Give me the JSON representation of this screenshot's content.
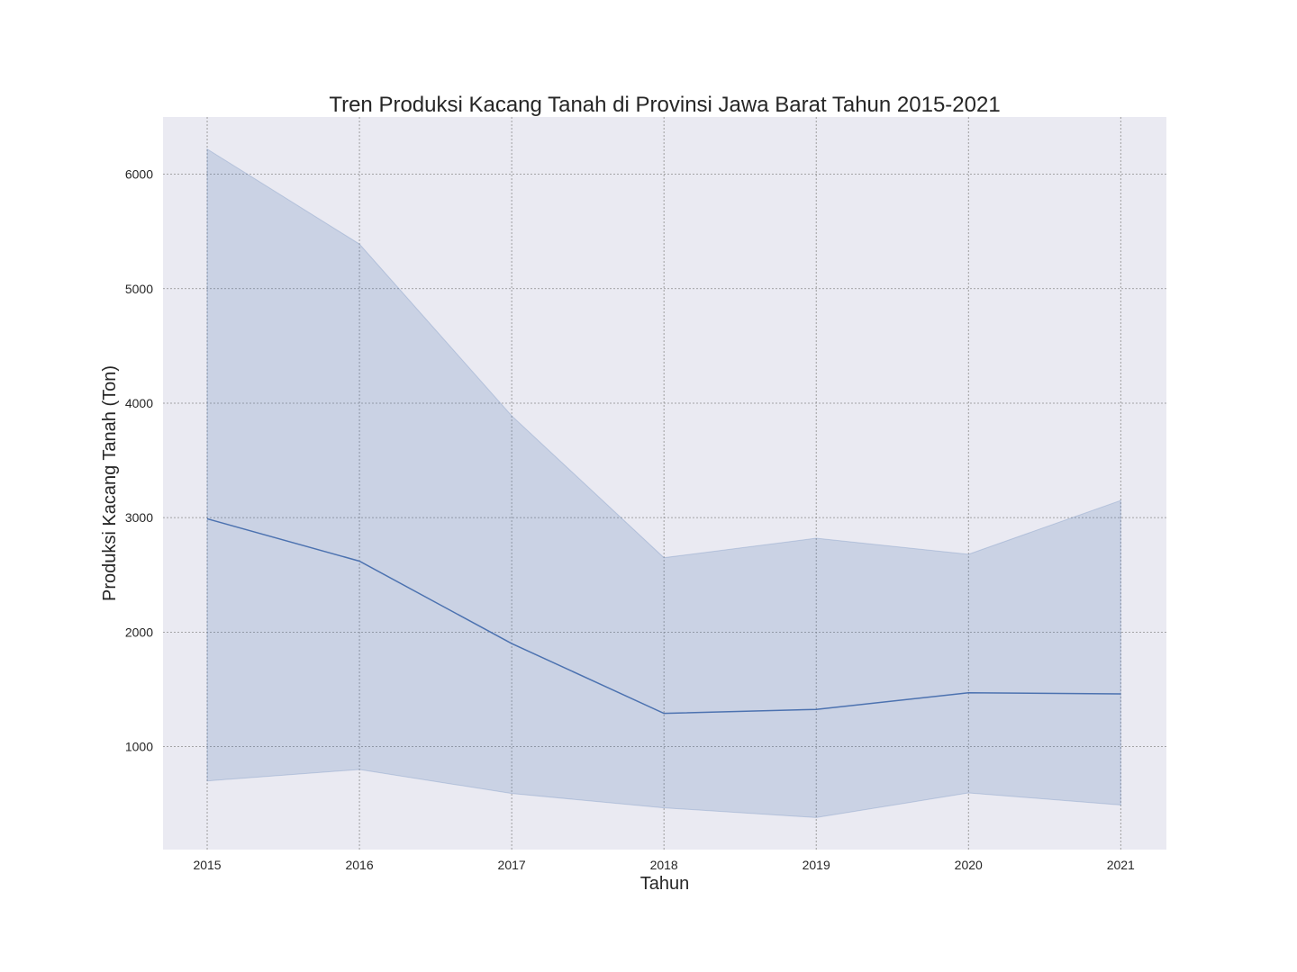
{
  "chart_data": {
    "type": "line",
    "title": "Tren Produksi Kacang Tanah di Provinsi Jawa Barat Tahun 2015-2021",
    "xlabel": "Tahun",
    "ylabel": "Produksi Kacang Tanah (Ton)",
    "x": [
      2015,
      2016,
      2017,
      2018,
      2019,
      2020,
      2021
    ],
    "x_tick_labels": [
      "2015",
      "2016",
      "2017",
      "2018",
      "2019",
      "2020",
      "2021"
    ],
    "y_ticks": [
      1000,
      2000,
      3000,
      4000,
      5000,
      6000
    ],
    "y_tick_labels": [
      "1000",
      "2000",
      "3000",
      "4000",
      "5000",
      "6000"
    ],
    "xlim": [
      2014.71,
      2021.3
    ],
    "ylim": [
      100,
      6500
    ],
    "grid": true,
    "series": [
      {
        "values": [
          2990,
          2620,
          1900,
          1290,
          1325,
          1470,
          1460
        ],
        "ci_upper": [
          6220,
          5390,
          3890,
          2650,
          2820,
          2680,
          3150
        ],
        "ci_lower": [
          700,
          800,
          590,
          465,
          380,
          595,
          490
        ],
        "color": "#4c72b0"
      }
    ],
    "plot_background": "#eaeaf2",
    "grid_color": "#8c8c8c"
  }
}
